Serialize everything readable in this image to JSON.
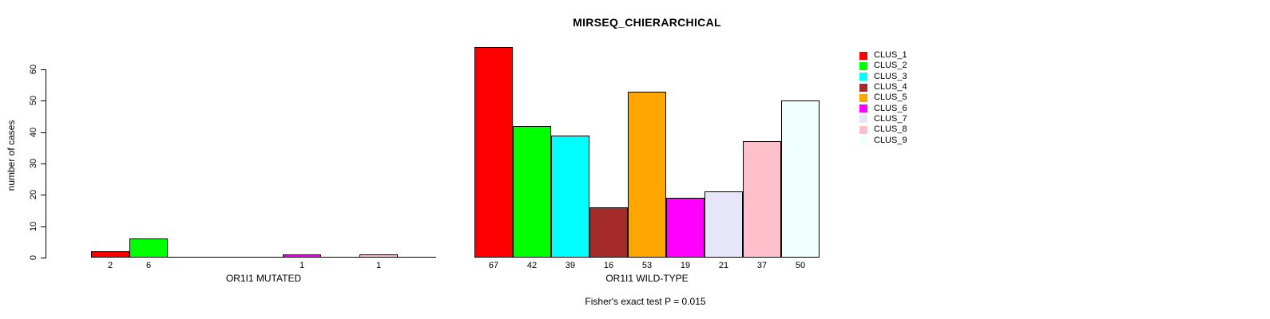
{
  "title": "MIRSEQ_CHIERARCHICAL",
  "footer": "Fisher's exact test P = 0.015",
  "legend": {
    "position": "right",
    "items": [
      {
        "label": "CLUS_1",
        "color": "#FF0000"
      },
      {
        "label": "CLUS_2",
        "color": "#00FF00"
      },
      {
        "label": "CLUS_3",
        "color": "#00FFFF"
      },
      {
        "label": "CLUS_4",
        "color": "#A52A2A"
      },
      {
        "label": "CLUS_5",
        "color": "#FFA500"
      },
      {
        "label": "CLUS_6",
        "color": "#FF00FF"
      },
      {
        "label": "CLUS_7",
        "color": "#E6E6FA"
      },
      {
        "label": "CLUS_8",
        "color": "#FFC0CB"
      },
      {
        "label": "CLUS_9",
        "color": "#F0FFFF"
      }
    ]
  },
  "chart_data": {
    "type": "bar",
    "title": "MIRSEQ_CHIERARCHICAL",
    "ylabel": "number of cases",
    "xlabel": "",
    "ylim": [
      0,
      67
    ],
    "yticks": [
      0,
      10,
      20,
      30,
      40,
      50,
      60
    ],
    "grid": false,
    "legend_position": "right",
    "series_labels": [
      "CLUS_1",
      "CLUS_2",
      "CLUS_3",
      "CLUS_4",
      "CLUS_5",
      "CLUS_6",
      "CLUS_7",
      "CLUS_8",
      "CLUS_9"
    ],
    "colors": [
      "#FF0000",
      "#00FF00",
      "#00FFFF",
      "#A52A2A",
      "#FFA500",
      "#FF00FF",
      "#E6E6FA",
      "#FFC0CB",
      "#F0FFFF"
    ],
    "groups": [
      {
        "xlabel": "OR1I1 MUTATED",
        "values": [
          2,
          6,
          0,
          0,
          0,
          1,
          0,
          1,
          0
        ],
        "bar_labels": [
          "2",
          "6",
          "",
          "",
          "",
          "1",
          "",
          "1",
          ""
        ]
      },
      {
        "xlabel": "OR1I1 WILD-TYPE",
        "values": [
          67,
          42,
          39,
          16,
          53,
          19,
          21,
          37,
          50
        ],
        "bar_labels": [
          "67",
          "42",
          "39",
          "16",
          "53",
          "19",
          "21",
          "37",
          "50"
        ]
      }
    ],
    "annotation": "Fisher's exact test P = 0.015",
    "bar_outline_color": "#000000"
  }
}
